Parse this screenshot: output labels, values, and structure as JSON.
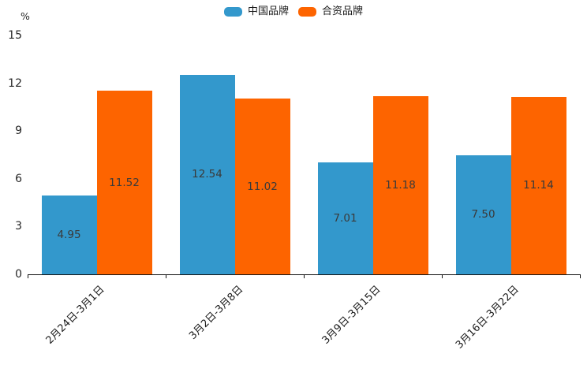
{
  "chart_data": {
    "type": "bar",
    "title": "",
    "xlabel": "",
    "ylabel": "%",
    "categories": [
      "2月24日-3月1日",
      "3月2日-3月8日",
      "3月9日-3月15日",
      "3月16日-3月22日"
    ],
    "series": [
      {
        "name": "中国品牌",
        "color": "#3398cc",
        "values": [
          4.95,
          12.54,
          7.01,
          7.5
        ]
      },
      {
        "name": "合资品牌",
        "color": "#fd6400",
        "values": [
          11.52,
          11.02,
          11.18,
          11.14
        ]
      }
    ],
    "value_label_format": "2-decimals",
    "value_label_position": "inside-center",
    "ylim": [
      0,
      15
    ],
    "yticks": [
      0,
      3,
      6,
      9,
      12,
      15
    ],
    "grid": false,
    "legend_position": "top-center",
    "xtick_rotation": 45
  },
  "legend": {
    "items": [
      {
        "label": "中国品牌",
        "color": "#3398cc"
      },
      {
        "label": "合资品牌",
        "color": "#fd6400"
      }
    ]
  }
}
